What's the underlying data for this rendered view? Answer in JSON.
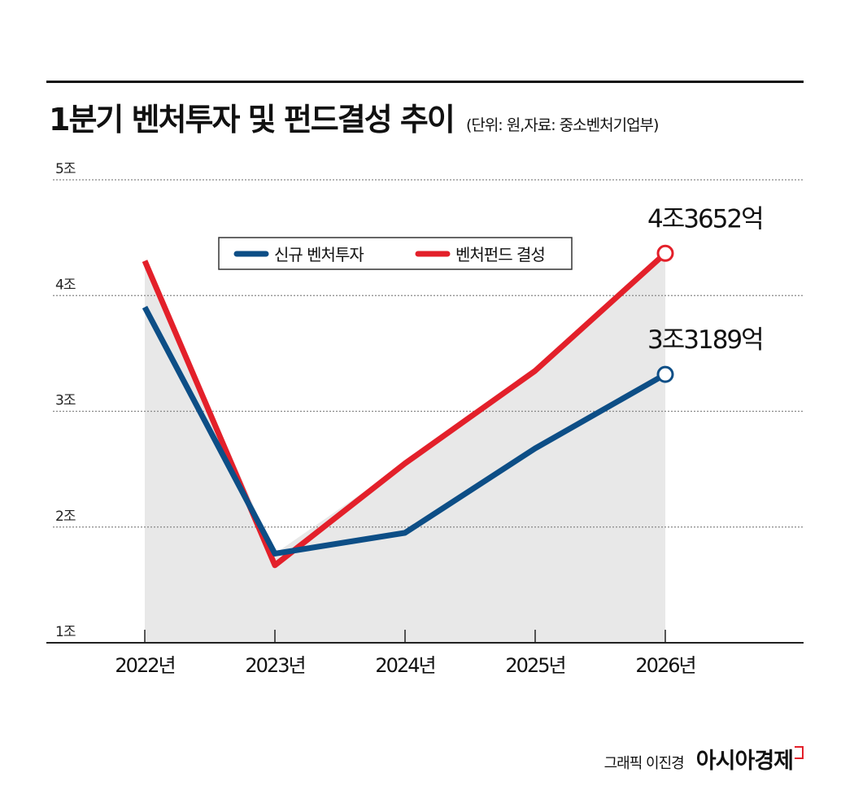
{
  "header": {
    "title": "1분기 벤처투자 및 펀드결성 추이",
    "subtitle": "(단위: 원,자료: 중소벤처기업부)"
  },
  "footer": {
    "credit": "그래픽 이진경",
    "brand": "아시아경제"
  },
  "colors": {
    "series_blue": "#0d4e86",
    "series_red": "#e3202a",
    "area_fill": "#e8e8e8",
    "grid": "#888888"
  },
  "chart_data": {
    "type": "line",
    "title": "1분기 벤처투자 및 펀드결성 추이",
    "x": [
      "2022년",
      "2023년",
      "2024년",
      "2025년",
      "2026년"
    ],
    "y_ticks": [
      {
        "value": 5,
        "label": "5조"
      },
      {
        "value": 4,
        "label": "4조"
      },
      {
        "value": 3,
        "label": "3조"
      },
      {
        "value": 2,
        "label": "2조"
      },
      {
        "value": 1,
        "label": "1조"
      }
    ],
    "ylim": [
      1,
      5
    ],
    "grid": true,
    "legend_position": "top-center",
    "series": [
      {
        "name": "신규 벤처투자",
        "color": "#0d4e86",
        "values": [
          3.9,
          1.77,
          1.95,
          2.68,
          3.3189
        ],
        "end_label": "3조3189억"
      },
      {
        "name": "벤처펀드 결성",
        "color": "#e3202a",
        "values": [
          4.3,
          1.67,
          2.55,
          3.35,
          4.3652
        ],
        "end_label": "4조3652억"
      }
    ]
  }
}
